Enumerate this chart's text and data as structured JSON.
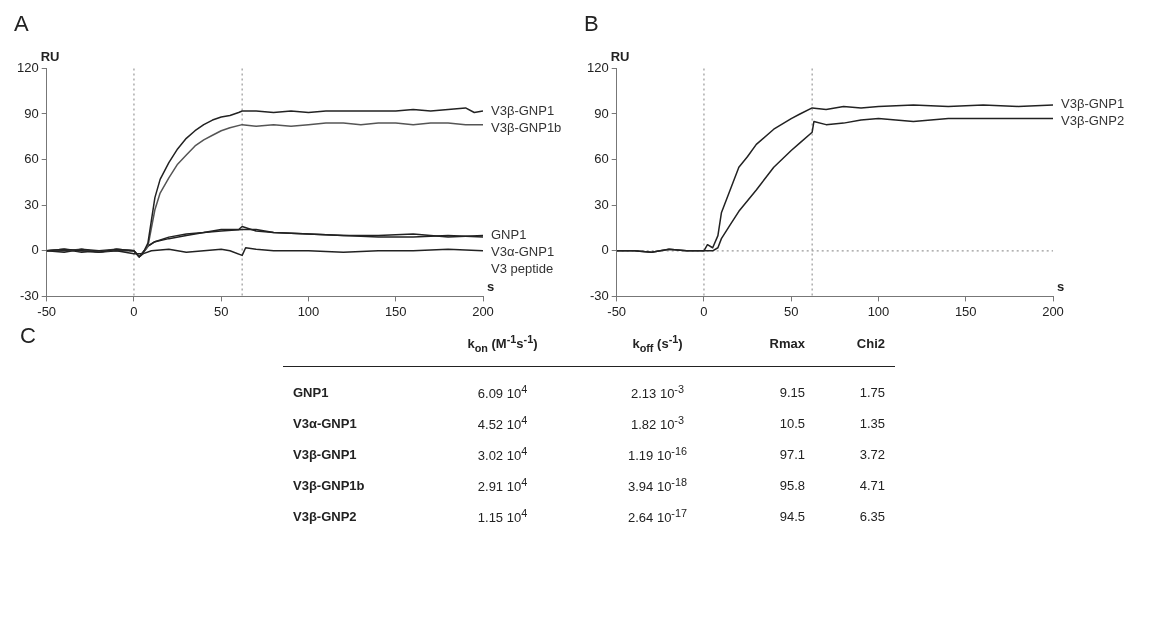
{
  "chart_data": [
    {
      "type": "line",
      "title": "A",
      "xlabel": "s",
      "ylabel": "RU",
      "xlim": [
        -50,
        200
      ],
      "ylim": [
        -30,
        120
      ],
      "xticks": [
        -50,
        0,
        50,
        100,
        150,
        200
      ],
      "yticks": [
        -30,
        0,
        30,
        60,
        90,
        120
      ],
      "grid": false,
      "legend": false,
      "marker": "none",
      "line_style": "solid",
      "ref_lines": [
        {
          "axis": "x",
          "value": 0,
          "color": "#999999",
          "line_style": "dotted"
        },
        {
          "axis": "x",
          "value": 62,
          "color": "#999999",
          "line_style": "dotted"
        }
      ],
      "series": [
        {
          "name": "V3β-GNP1",
          "color": "#222222",
          "x": [
            -50,
            -40,
            -30,
            -20,
            -10,
            0,
            3,
            5,
            8,
            10,
            12,
            15,
            20,
            25,
            30,
            35,
            40,
            45,
            50,
            55,
            60,
            62,
            70,
            80,
            90,
            100,
            110,
            120,
            130,
            140,
            150,
            160,
            170,
            180,
            190,
            195,
            200
          ],
          "values": [
            0,
            1,
            0,
            -1,
            1,
            0,
            -4,
            -2,
            5,
            20,
            35,
            47,
            58,
            67,
            74,
            79,
            83,
            86,
            88,
            89,
            91,
            92,
            92,
            91,
            92,
            91,
            92,
            92,
            92,
            92,
            92,
            93,
            92,
            93,
            94,
            91,
            92
          ]
        },
        {
          "name": "V3β-GNP1b",
          "color": "#555555",
          "x": [
            -50,
            -40,
            -30,
            -20,
            -10,
            0,
            3,
            5,
            8,
            10,
            12,
            15,
            20,
            25,
            30,
            35,
            40,
            45,
            50,
            55,
            62,
            70,
            80,
            90,
            100,
            110,
            120,
            130,
            140,
            150,
            160,
            170,
            180,
            190,
            200
          ],
          "values": [
            0,
            1,
            0,
            -1,
            1,
            0,
            -4,
            -2,
            3,
            15,
            27,
            38,
            48,
            57,
            63,
            69,
            73,
            76,
            79,
            81,
            83,
            82,
            83,
            82,
            83,
            84,
            84,
            83,
            84,
            84,
            83,
            84,
            84,
            83,
            83
          ]
        },
        {
          "name": "GNP1",
          "color": "#222222",
          "x": [
            -50,
            -40,
            -30,
            -20,
            -10,
            0,
            3,
            8,
            12,
            20,
            30,
            40,
            50,
            60,
            62,
            70,
            80,
            100,
            120,
            140,
            160,
            180,
            200
          ],
          "values": [
            0,
            -1,
            1,
            0,
            1,
            0,
            -4,
            3,
            6,
            9,
            11,
            12,
            14,
            14,
            16,
            13,
            12,
            11,
            10,
            10,
            11,
            9,
            10
          ]
        },
        {
          "name": "V3α-GNP1",
          "color": "#222222",
          "x": [
            -50,
            -40,
            -30,
            -20,
            -10,
            0,
            3,
            8,
            12,
            20,
            30,
            40,
            50,
            62,
            70,
            80,
            100,
            120,
            140,
            160,
            180,
            200
          ],
          "values": [
            0,
            1,
            -1,
            0,
            0,
            0,
            -4,
            3,
            6,
            8,
            10,
            12,
            13,
            14,
            14,
            12,
            11,
            10,
            9,
            9,
            10,
            9
          ]
        },
        {
          "name": "V3 peptide",
          "color": "#222222",
          "x": [
            -50,
            -40,
            -30,
            -20,
            -10,
            0,
            5,
            10,
            20,
            30,
            40,
            50,
            55,
            62,
            64,
            70,
            80,
            100,
            120,
            140,
            160,
            180,
            200
          ],
          "values": [
            0,
            0,
            1,
            -1,
            0,
            -2,
            -2,
            0,
            1,
            -1,
            0,
            1,
            0,
            -3,
            2,
            1,
            0,
            0,
            -1,
            0,
            0,
            1,
            0
          ]
        }
      ]
    },
    {
      "type": "line",
      "title": "B",
      "xlabel": "s",
      "ylabel": "RU",
      "xlim": [
        -50,
        200
      ],
      "ylim": [
        -30,
        120
      ],
      "xticks": [
        -50,
        0,
        50,
        100,
        150,
        200
      ],
      "yticks": [
        -30,
        0,
        30,
        60,
        90,
        120
      ],
      "grid": false,
      "legend": false,
      "marker": "none",
      "line_style": "solid",
      "ref_lines": [
        {
          "axis": "x",
          "value": 0,
          "color": "#999999",
          "line_style": "dotted"
        },
        {
          "axis": "x",
          "value": 62,
          "color": "#999999",
          "line_style": "dotted"
        },
        {
          "axis": "y",
          "value": 0,
          "color": "#999999",
          "line_style": "dotted"
        }
      ],
      "series": [
        {
          "name": "V3β-GNP1",
          "color": "#222222",
          "x": [
            -50,
            -40,
            -30,
            -20,
            -10,
            0,
            2,
            5,
            8,
            10,
            15,
            20,
            25,
            30,
            40,
            50,
            55,
            62,
            70,
            80,
            90,
            100,
            120,
            140,
            160,
            180,
            200
          ],
          "values": [
            0,
            0,
            -1,
            1,
            0,
            0,
            4,
            2,
            10,
            25,
            40,
            55,
            62,
            70,
            80,
            87,
            90,
            94,
            93,
            95,
            94,
            95,
            96,
            95,
            96,
            95,
            96
          ]
        },
        {
          "name": "V3β-GNP2",
          "color": "#222222",
          "x": [
            -50,
            -40,
            -30,
            -20,
            -10,
            0,
            5,
            8,
            10,
            15,
            20,
            30,
            40,
            50,
            55,
            62,
            63,
            70,
            80,
            90,
            100,
            120,
            140,
            160,
            180,
            200
          ],
          "values": [
            0,
            0,
            -1,
            1,
            0,
            0,
            0,
            2,
            8,
            17,
            26,
            40,
            55,
            66,
            71,
            78,
            85,
            83,
            84,
            86,
            87,
            85,
            87,
            87,
            87,
            87
          ]
        }
      ]
    },
    {
      "type": "other",
      "title": "C",
      "annotations": [
        "k$_{on}$ (M$^{-1}$s$^{-1}$)",
        "k$_{off}$ (s$^{-1}$)",
        "Rmax",
        "Chi2",
        "GNP1",
        "6.09 10$^{4}$",
        "2.13 10$^{-3}$",
        "9.15",
        "1.75",
        "V3α-GNP1",
        "4.52 10$^{4}$",
        "1.82 10$^{-3}$",
        "10.5",
        "1.35",
        "V3β-GNP1",
        "3.02 10$^{4}$",
        "1.19 10$^{-16}$",
        "97.1",
        "3.72",
        "V3β-GNP1b",
        "2.91 10$^{4}$",
        "3.94 10$^{-18}$",
        "95.8",
        "4.71",
        "V3β-GNP2",
        "1.15 10$^{4}$",
        "2.64 10$^{-17}$",
        "94.5",
        "6.35"
      ]
    }
  ]
}
